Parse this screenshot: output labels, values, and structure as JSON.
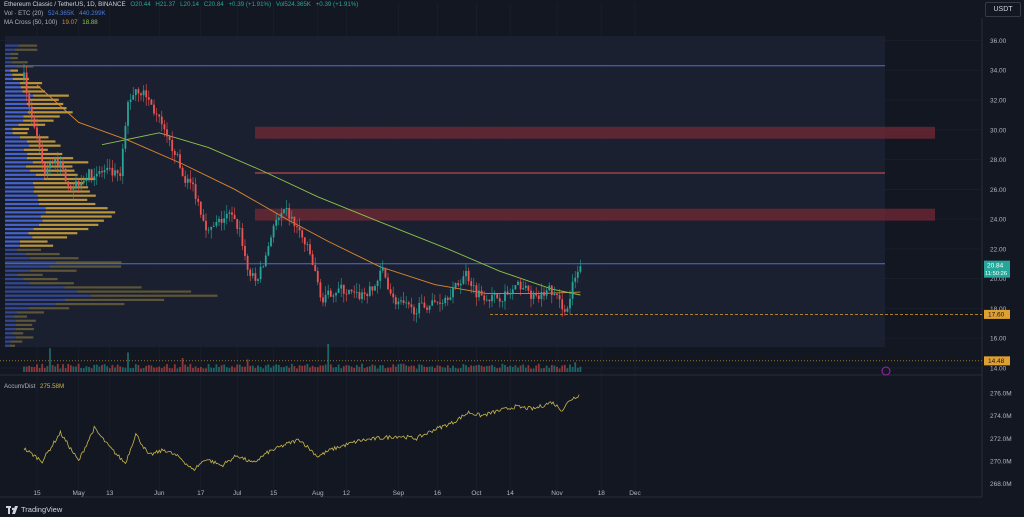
{
  "header": {
    "line1": {
      "title": "Ethereum Classic / TetherUS, 1D, BINANCE",
      "o": "O20.44",
      "h": "H21.37",
      "l": "L20.14",
      "c": "C20.84",
      "chg": "+0.39 (+1.91%)",
      "vol": "Vol524.365K",
      "vol_chg": "+0.39 (+1.91%)"
    },
    "line2": {
      "label": "Vol · ETC (20)",
      "v1": "524.365K",
      "v2": "440.299K"
    },
    "line3": {
      "label": "MA Cross (50, 100)",
      "v1": "19.07",
      "v2": "18.88"
    }
  },
  "currency": "USDT",
  "brand": "TradingView",
  "colors": {
    "bg": "#131722",
    "up": "#26a69a",
    "down": "#ef5350",
    "ma50": "#e08a2b",
    "ma100": "#8bc34a",
    "accum": "#c9b64a",
    "hline": "#4a6ed6",
    "zone": "#7a2a35",
    "redline": "#e05050"
  },
  "chart_data": [
    {
      "type": "candlestick",
      "name": "price",
      "y_ticks": [
        "36.00",
        "34.00",
        "32.00",
        "30.00",
        "28.00",
        "26.00",
        "24.00",
        "22.00",
        "20.00",
        "18.00",
        "16.00",
        "14.00"
      ],
      "ylim": [
        14,
        36.5
      ],
      "x_ticks": [
        "15",
        "May",
        "13",
        "Jun",
        "17",
        "Jul",
        "15",
        "Aug",
        "12",
        "Sep",
        "16",
        "Oct",
        "14",
        "Nov",
        "18",
        "Dec"
      ],
      "x_tick_dates": [
        "2024-04-15",
        "2024-05-01",
        "2024-05-13",
        "2024-06-01",
        "2024-06-17",
        "2024-07-01",
        "2024-07-15",
        "2024-08-01",
        "2024-08-12",
        "2024-09-01",
        "2024-09-16",
        "2024-10-01",
        "2024-10-14",
        "2024-11-01",
        "2024-11-18",
        "2024-12-01"
      ],
      "last_price": "20.84",
      "countdown": "11:50:26",
      "labels": [
        {
          "value": 17.6,
          "text": "17.60"
        },
        {
          "value": 14.48,
          "text": "14.48"
        }
      ],
      "horizontal_lines": [
        34.3,
        27.1,
        21.0
      ],
      "dashed_support": 17.6,
      "zones": [
        [
          29.4,
          30.2
        ],
        [
          23.9,
          24.7
        ]
      ],
      "close_path": [
        [
          "2024-04-10",
          33.5
        ],
        [
          "2024-04-14",
          30.0
        ],
        [
          "2024-04-18",
          27.0
        ],
        [
          "2024-04-22",
          28.2
        ],
        [
          "2024-04-28",
          26.2
        ],
        [
          "2024-05-05",
          27.0
        ],
        [
          "2024-05-12",
          27.2
        ],
        [
          "2024-05-17",
          26.8
        ],
        [
          "2024-05-20",
          31.8
        ],
        [
          "2024-05-23",
          32.8
        ],
        [
          "2024-05-27",
          32.3
        ],
        [
          "2024-06-01",
          30.6
        ],
        [
          "2024-06-04",
          29.3
        ],
        [
          "2024-06-07",
          28.6
        ],
        [
          "2024-06-10",
          26.9
        ],
        [
          "2024-06-14",
          26.2
        ],
        [
          "2024-06-17",
          24.6
        ],
        [
          "2024-06-20",
          23.1
        ],
        [
          "2024-06-24",
          23.8
        ],
        [
          "2024-06-28",
          24.3
        ],
        [
          "2024-07-02",
          23.3
        ],
        [
          "2024-07-05",
          20.6
        ],
        [
          "2024-07-08",
          19.8
        ],
        [
          "2024-07-11",
          20.9
        ],
        [
          "2024-07-15",
          23.6
        ],
        [
          "2024-07-20",
          24.5
        ],
        [
          "2024-07-25",
          23.1
        ],
        [
          "2024-07-29",
          21.6
        ],
        [
          "2024-08-03",
          18.4
        ],
        [
          "2024-08-06",
          19.1
        ],
        [
          "2024-08-10",
          19.3
        ],
        [
          "2024-08-16",
          18.8
        ],
        [
          "2024-08-22",
          19.2
        ],
        [
          "2024-08-26",
          20.6
        ],
        [
          "2024-08-30",
          18.6
        ],
        [
          "2024-09-06",
          17.9
        ],
        [
          "2024-09-12",
          18.2
        ],
        [
          "2024-09-18",
          18.6
        ],
        [
          "2024-09-23",
          19.4
        ],
        [
          "2024-09-27",
          20.4
        ],
        [
          "2024-10-01",
          19.1
        ],
        [
          "2024-10-07",
          18.7
        ],
        [
          "2024-10-13",
          18.9
        ],
        [
          "2024-10-18",
          19.6
        ],
        [
          "2024-10-24",
          18.6
        ],
        [
          "2024-10-29",
          19.3
        ],
        [
          "2024-11-03",
          18.2
        ],
        [
          "2024-11-05",
          17.9
        ],
        [
          "2024-11-07",
          19.5
        ],
        [
          "2024-11-10",
          20.8
        ]
      ],
      "ma50": [
        [
          "2024-04-15",
          33.0
        ],
        [
          "2024-05-01",
          30.5
        ],
        [
          "2024-05-20",
          29.3
        ],
        [
          "2024-06-10",
          27.7
        ],
        [
          "2024-06-30",
          26.0
        ],
        [
          "2024-07-20",
          24.0
        ],
        [
          "2024-08-05",
          22.5
        ],
        [
          "2024-08-25",
          20.8
        ],
        [
          "2024-09-15",
          19.6
        ],
        [
          "2024-10-05",
          19.0
        ],
        [
          "2024-10-25",
          19.0
        ],
        [
          "2024-11-10",
          19.1
        ]
      ],
      "ma100": [
        [
          "2024-05-10",
          29.0
        ],
        [
          "2024-06-01",
          29.8
        ],
        [
          "2024-06-20",
          28.8
        ],
        [
          "2024-07-10",
          27.3
        ],
        [
          "2024-08-01",
          25.5
        ],
        [
          "2024-08-25",
          23.8
        ],
        [
          "2024-09-20",
          22.0
        ],
        [
          "2024-10-10",
          20.5
        ],
        [
          "2024-10-30",
          19.3
        ],
        [
          "2024-11-10",
          18.9
        ]
      ]
    },
    {
      "type": "bar",
      "name": "volume",
      "note_values": "relative heights (0-1) of volume bars, representative",
      "spikes": [
        [
          "2024-04-20",
          0.85
        ],
        [
          "2024-05-20",
          0.7
        ],
        [
          "2024-06-10",
          0.5
        ],
        [
          "2024-07-05",
          0.45
        ],
        [
          "2024-08-05",
          1.0
        ],
        [
          "2024-11-08",
          0.35
        ]
      ]
    },
    {
      "type": "line",
      "name": "accum_dist",
      "title": "Accum/Dist",
      "last_value": "275.58M",
      "y_ticks": [
        "276.0M",
        "274.0M",
        "272.0M",
        "270.0M",
        "268.0M"
      ],
      "ylim": [
        267.8,
        276.8
      ],
      "points": [
        [
          "2024-04-10",
          271.1
        ],
        [
          "2024-04-17",
          270.0
        ],
        [
          "2024-04-24",
          272.5
        ],
        [
          "2024-05-01",
          270.0
        ],
        [
          "2024-05-07",
          272.9
        ],
        [
          "2024-05-13",
          271.2
        ],
        [
          "2024-05-19",
          269.8
        ],
        [
          "2024-05-23",
          272.4
        ],
        [
          "2024-05-28",
          270.5
        ],
        [
          "2024-06-03",
          271.0
        ],
        [
          "2024-06-09",
          270.3
        ],
        [
          "2024-06-14",
          269.2
        ],
        [
          "2024-06-19",
          270.2
        ],
        [
          "2024-06-25",
          269.6
        ],
        [
          "2024-07-01",
          270.5
        ],
        [
          "2024-07-07",
          269.8
        ],
        [
          "2024-07-13",
          270.8
        ],
        [
          "2024-07-20",
          271.5
        ],
        [
          "2024-07-25",
          271.9
        ],
        [
          "2024-08-01",
          270.4
        ],
        [
          "2024-08-06",
          271.0
        ],
        [
          "2024-08-10",
          271.3
        ],
        [
          "2024-08-17",
          271.8
        ],
        [
          "2024-08-24",
          272.0
        ],
        [
          "2024-09-01",
          272.2
        ],
        [
          "2024-09-08",
          272.0
        ],
        [
          "2024-09-15",
          272.8
        ],
        [
          "2024-09-22",
          273.4
        ],
        [
          "2024-09-28",
          274.3
        ],
        [
          "2024-10-03",
          274.0
        ],
        [
          "2024-10-09",
          274.4
        ],
        [
          "2024-10-16",
          274.8
        ],
        [
          "2024-10-23",
          274.6
        ],
        [
          "2024-10-30",
          275.2
        ],
        [
          "2024-11-03",
          274.5
        ],
        [
          "2024-11-06",
          275.4
        ],
        [
          "2024-11-10",
          275.9
        ]
      ]
    }
  ]
}
